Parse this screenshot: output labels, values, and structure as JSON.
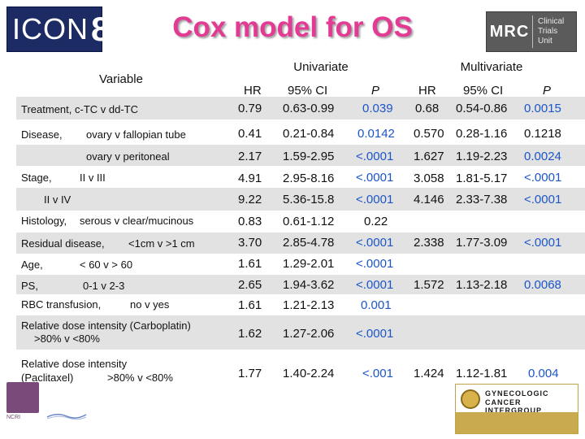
{
  "header": {
    "title": "Cox model for OS",
    "logo_left_word": "ICON",
    "logo_left_number": "8",
    "logo_right_main": "MRC",
    "logo_right_sub": [
      "Clinical",
      "Trials",
      "Unit"
    ]
  },
  "table": {
    "groups": {
      "variable": "Variable",
      "univariate": "Univariate",
      "multivariate": "Multivariate"
    },
    "columns": [
      "HR",
      "95% CI",
      "P",
      "HR",
      "95% CI",
      "P"
    ],
    "rows": [
      {
        "label": "Treatment, c-TC v dd-TC",
        "u_hr": "0.79",
        "u_ci": "0.63-0.99",
        "u_p": "0.039",
        "m_hr": "0.68",
        "m_ci": "0.54-0.86",
        "m_p": "0.0015"
      },
      {
        "label": "Disease,",
        "sub": "ovary v fallopian tube",
        "u_hr": "0.41",
        "u_ci": "0.21-0.84",
        "u_p": "0.0142",
        "m_hr": "0.570",
        "m_ci": "0.28-1.16",
        "m_p": "0.1218"
      },
      {
        "label": "",
        "sub": "ovary v peritoneal",
        "u_hr": "2.17",
        "u_ci": "1.59-2.95",
        "u_p": "<.0001",
        "m_hr": "1.627",
        "m_ci": "1.19-2.23",
        "m_p": "0.0024"
      },
      {
        "label": "Stage,",
        "sub": "II v III",
        "u_hr": "4.91",
        "u_ci": "2.95-8.16",
        "u_p": "<.0001",
        "m_hr": "3.058",
        "m_ci": "1.81-5.17",
        "m_p": "<.0001"
      },
      {
        "label": "",
        "sub": "II v IV",
        "u_hr": "9.22",
        "u_ci": "5.36-15.8",
        "u_p": "<.0001",
        "m_hr": "4.146",
        "m_ci": "2.33-7.38",
        "m_p": "<.0001"
      },
      {
        "label": "Histology,",
        "sub": "serous v clear/mucinous",
        "u_hr": "0.83",
        "u_ci": "0.61-1.12",
        "u_p": "0.22",
        "m_hr": "",
        "m_ci": "",
        "m_p": ""
      },
      {
        "label": "Residual disease,",
        "sub": "<1cm v >1 cm",
        "u_hr": "3.70",
        "u_ci": "2.85-4.78",
        "u_p": "<.0001",
        "m_hr": "2.338",
        "m_ci": "1.77-3.09",
        "m_p": "<.0001"
      },
      {
        "label": "Age,",
        "sub": "< 60 v > 60",
        "u_hr": "1.61",
        "u_ci": "1.29-2.01",
        "u_p": "<.0001",
        "m_hr": "",
        "m_ci": "",
        "m_p": ""
      },
      {
        "label": "PS,",
        "sub": "0-1 v 2-3",
        "u_hr": "2.65",
        "u_ci": "1.94-3.62",
        "u_p": "<.0001",
        "m_hr": "1.572",
        "m_ci": "1.13-2.18",
        "m_p": "0.0068"
      },
      {
        "label": "RBC transfusion,",
        "sub": "no v yes",
        "u_hr": "1.61",
        "u_ci": "1.21-2.13",
        "u_p": "0.001",
        "m_hr": "",
        "m_ci": "",
        "m_p": ""
      },
      {
        "label": "Relative dose intensity (Carboplatin)",
        "sub": ">80% v <80%",
        "u_hr": "1.62",
        "u_ci": "1.27-2.06",
        "u_p": "<.0001",
        "m_hr": "",
        "m_ci": "",
        "m_p": ""
      },
      {
        "label": "Relative dose intensity",
        "label2": "(Paclitaxel)",
        "sub": ">80% v <80%",
        "u_hr": "1.77",
        "u_ci": "1.40-2.24",
        "u_p": "<.001",
        "m_hr": "1.424",
        "m_ci": "1.12-1.81",
        "m_p": "0.004"
      }
    ]
  },
  "footer": {
    "left_logo_text": "NCRI",
    "right_logo_line1": "GYNECOLOGIC",
    "right_logo_line2": "CANCER INTERGROUP"
  },
  "colors": {
    "title": "#e33a93",
    "p_value": "#1b55c9",
    "row_band": "#e2e2e2",
    "icon_logo_bg": "#1c2b63",
    "mrc_logo_bg": "#5b5b5b"
  }
}
